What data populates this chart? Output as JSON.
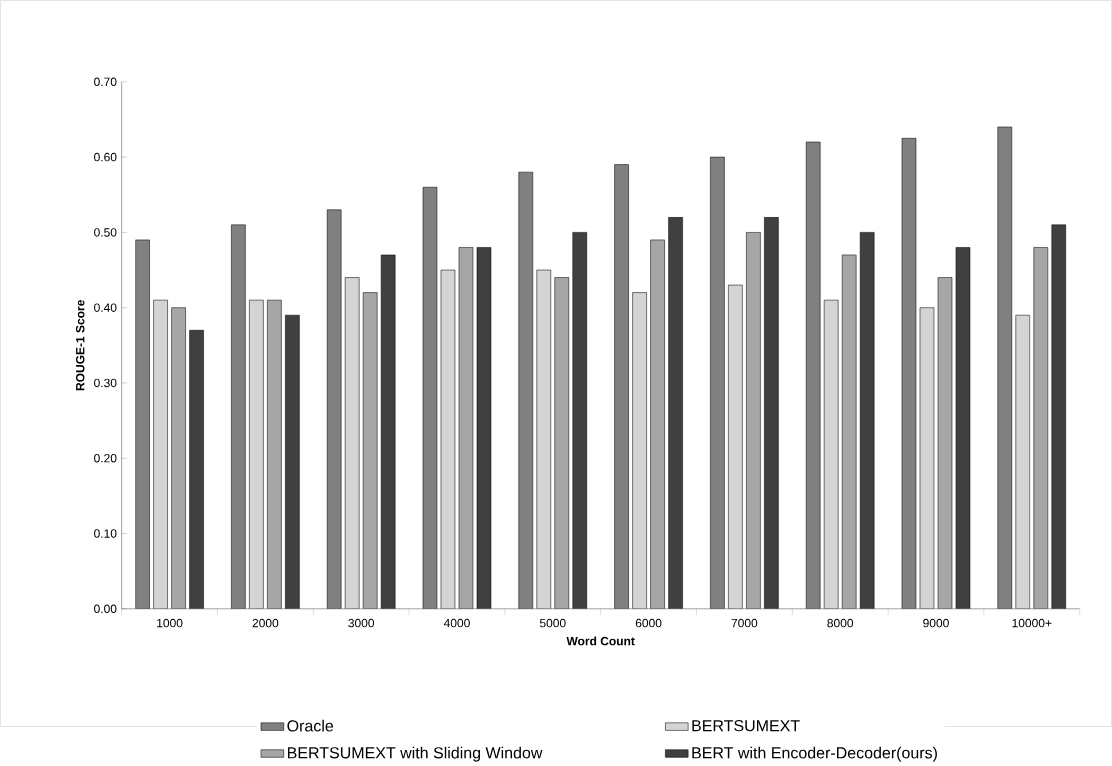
{
  "chart_data": {
    "type": "bar",
    "xlabel": "Word Count",
    "ylabel": "ROUGE-1 Score",
    "categories": [
      "1000",
      "2000",
      "3000",
      "4000",
      "5000",
      "6000",
      "7000",
      "8000",
      "9000",
      "10000+"
    ],
    "series": [
      {
        "name": "Oracle",
        "color": "#808080",
        "values": [
          0.49,
          0.51,
          0.53,
          0.56,
          0.58,
          0.59,
          0.6,
          0.62,
          0.625,
          0.64
        ]
      },
      {
        "name": "BERTSUMEXT",
        "color": "#d4d4d4",
        "values": [
          0.41,
          0.41,
          0.44,
          0.45,
          0.45,
          0.42,
          0.43,
          0.41,
          0.4,
          0.39
        ]
      },
      {
        "name": "BERTSUMEXT with Sliding Window",
        "color": "#a6a6a6",
        "values": [
          0.4,
          0.41,
          0.42,
          0.48,
          0.44,
          0.49,
          0.5,
          0.47,
          0.44,
          0.48
        ]
      },
      {
        "name": "BERT with Encoder-Decoder(ours)",
        "color": "#404040",
        "values": [
          0.37,
          0.39,
          0.47,
          0.48,
          0.5,
          0.52,
          0.52,
          0.5,
          0.48,
          0.51
        ]
      }
    ],
    "ylim": [
      0,
      0.7
    ],
    "yticks": [
      {
        "value": 0,
        "label": "0.00"
      },
      {
        "value": 0.1,
        "label": "0.10"
      },
      {
        "value": 0.2,
        "label": "0.20"
      },
      {
        "value": 0.3,
        "label": "0.30"
      },
      {
        "value": 0.4,
        "label": "0.40"
      },
      {
        "value": 0.5,
        "label": "0.50"
      },
      {
        "value": 0.6,
        "label": "0.60"
      },
      {
        "value": 0.7,
        "label": "0.70"
      }
    ],
    "grid": false,
    "legend": "bottom"
  }
}
